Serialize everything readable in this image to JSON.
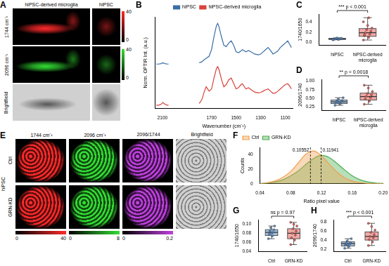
{
  "panels": {
    "A": {
      "label": "A",
      "columns": [
        "hiPSC-derived microglia",
        "hiPSC"
      ],
      "rows": [
        "1744 cm⁻¹",
        "2096 cm⁻¹",
        "Brightfield"
      ],
      "colors": [
        "#ff2a2a",
        "#33dd33",
        "#b0b0b0"
      ],
      "colorbars": [
        {
          "range": [
            0,
            40
          ]
        },
        {
          "range": [
            0,
            40
          ]
        }
      ]
    },
    "E": {
      "label": "E",
      "group": "hiPSC",
      "rows": [
        "Ctrl",
        "GRN-KD"
      ],
      "columns": [
        "1744 cm⁻¹",
        "2096 cm⁻¹",
        "2096/1744",
        "Brightfield"
      ],
      "colors": [
        "#ff2a2a",
        "#33dd33",
        "#c040e0",
        "#b0b0b0"
      ],
      "colorbars": [
        {
          "range": [
            0,
            40
          ]
        },
        {
          "range": [
            0,
            8
          ]
        },
        {
          "range": [
            0,
            0.2
          ]
        }
      ]
    }
  },
  "chart_data": [
    {
      "label": "B",
      "type": "line",
      "x_label": "Wavenumber (cm⁻¹)",
      "y_label": "Norm. OPTIR Int. (a.u.)",
      "x": [
        2150,
        2130,
        2110,
        2096,
        2080,
        2060,
        2050,
        1950,
        1800,
        1780,
        1760,
        1744,
        1720,
        1700,
        1680,
        1660,
        1650,
        1640,
        1620,
        1600,
        1580,
        1560,
        1540,
        1520,
        1500,
        1480,
        1460,
        1450,
        1420,
        1400,
        1380,
        1350,
        1320,
        1300,
        1280,
        1260,
        1240,
        1220,
        1200,
        1180,
        1160,
        1140,
        1120,
        1100,
        1080,
        1060,
        1050
      ],
      "series": [
        {
          "name": "hiPSC",
          "color": "#3a6ea5",
          "values": [
            1.02,
            1.02,
            1.03,
            1.05,
            1.03,
            1.02,
            1.02,
            null,
            1.05,
            1.07,
            1.12,
            1.15,
            1.2,
            1.35,
            1.65,
            1.9,
            1.95,
            1.88,
            1.65,
            1.45,
            1.42,
            1.5,
            1.55,
            1.45,
            1.3,
            1.28,
            1.32,
            1.35,
            1.3,
            1.33,
            1.3,
            1.25,
            1.23,
            1.25,
            1.3,
            1.35,
            1.4,
            1.33,
            1.25,
            1.28,
            1.32,
            1.4,
            1.45,
            1.5,
            1.55,
            1.45,
            1.4
          ]
        },
        {
          "name": "hiPSC-derived microglia",
          "color": "#d9413a",
          "values": [
            0.08,
            0.08,
            0.1,
            0.14,
            0.1,
            0.08,
            0.08,
            null,
            0.12,
            0.2,
            0.38,
            0.5,
            0.4,
            0.45,
            0.7,
            0.92,
            0.96,
            0.9,
            0.68,
            0.5,
            0.55,
            0.66,
            0.7,
            0.58,
            0.45,
            0.48,
            0.55,
            0.57,
            0.45,
            0.48,
            0.44,
            0.38,
            0.36,
            0.37,
            0.4,
            0.43,
            0.45,
            0.4,
            0.35,
            0.36,
            0.4,
            0.45,
            0.5,
            0.55,
            0.57,
            0.5,
            0.45
          ]
        }
      ],
      "xlim": [
        2160,
        1040
      ],
      "xticks": [
        2100,
        1700,
        1500,
        1300,
        1100
      ],
      "ylim": [
        0,
        2.1
      ],
      "yticks": [],
      "tick_labels": "x",
      "legend": "top",
      "grid": false
    },
    {
      "label": "C",
      "type": "box",
      "categories": [
        "hiPSC",
        "hiPSC-derived microglia"
      ],
      "y_label": "1740/1650",
      "colors": [
        "#5b8fc7",
        "#e0605a"
      ],
      "boxes": [
        {
          "whisker_low": 0.055,
          "q1": 0.062,
          "median": 0.07,
          "q3": 0.08,
          "whisker_high": 0.09,
          "points": [
            0.055,
            0.06,
            0.065,
            0.07,
            0.07,
            0.075,
            0.08,
            0.085,
            0.09,
            0.06
          ]
        },
        {
          "whisker_low": 0.05,
          "q1": 0.12,
          "median": 0.19,
          "q3": 0.27,
          "whisker_high": 0.48,
          "points": [
            0.05,
            0.1,
            0.13,
            0.16,
            0.19,
            0.22,
            0.25,
            0.28,
            0.33,
            0.4,
            0.48,
            0.15
          ]
        }
      ],
      "ylim": [
        -0.05,
        0.55
      ],
      "yticks": [
        {
          "value": 0,
          "label": "0.0"
        },
        {
          "value": 0.2,
          "label": "0.2"
        },
        {
          "value": 0.4,
          "label": "0.4"
        }
      ],
      "annotation": "*** p < 0.001",
      "grid": false
    },
    {
      "label": "D",
      "type": "box",
      "categories": [
        "hiPSC",
        "hiPSC-derived microglia"
      ],
      "y_label": "2096/1740",
      "colors": [
        "#5b8fc7",
        "#e0605a"
      ],
      "boxes": [
        {
          "whisker_low": 0.3,
          "q1": 0.35,
          "median": 0.4,
          "q3": 0.45,
          "whisker_high": 0.52,
          "points": [
            0.3,
            0.34,
            0.37,
            0.4,
            0.42,
            0.44,
            0.47,
            0.52,
            0.38
          ]
        },
        {
          "whisker_low": 0.33,
          "q1": 0.45,
          "median": 0.55,
          "q3": 0.65,
          "whisker_high": 0.88,
          "points": [
            0.33,
            0.42,
            0.48,
            0.52,
            0.56,
            0.6,
            0.64,
            0.7,
            0.8,
            0.88
          ]
        }
      ],
      "ylim": [
        0.15,
        1.05
      ],
      "yticks": [
        {
          "value": 0.25,
          "label": "0.25"
        },
        {
          "value": 0.5,
          "label": "0.50"
        },
        {
          "value": 0.75,
          "label": "0.75"
        },
        {
          "value": 1,
          "label": "1.00"
        }
      ],
      "annotation": "** p = 0.0018",
      "grid": false
    },
    {
      "label": "F",
      "type": "area",
      "x_label": "Ratio pixel value",
      "y_label": "Counts",
      "x": [
        0.04,
        0.05,
        0.06,
        0.07,
        0.08,
        0.09,
        0.1,
        0.11,
        0.12,
        0.13,
        0.14,
        0.15,
        0.16,
        0.17,
        0.18,
        0.19,
        0.2
      ],
      "series": [
        {
          "name": "Ctrl",
          "color": "#f0a050",
          "values": [
            0.5,
            1.5,
            4,
            9,
            17,
            29,
            41,
            45,
            38,
            27,
            16,
            8,
            3.5,
            1.5,
            0.5,
            0.2,
            0.1
          ]
        },
        {
          "name": "GRN-KD",
          "color": "#4caf50",
          "values": [
            0.3,
            1,
            2.5,
            5.5,
            11,
            18,
            27,
            35,
            39,
            36,
            28,
            19,
            11,
            5.5,
            2.5,
            1,
            0.4
          ]
        }
      ],
      "xlim": [
        0.04,
        0.2
      ],
      "xticks": [
        0.04,
        0.08,
        0.12,
        0.16,
        {
          "value": 0.2,
          "label": "0.20"
        }
      ],
      "ylim": [
        0,
        50
      ],
      "yticks": [
        0,
        20,
        40
      ],
      "vlines": [
        0.10552,
        0.11941
      ],
      "legend": "top-left",
      "grid": false
    },
    {
      "label": "G",
      "type": "box",
      "categories": [
        "Ctrl",
        "GRN-KD"
      ],
      "y_label": "1740/1650",
      "colors": [
        "#5b8fc7",
        "#e0605a"
      ],
      "boxes": [
        {
          "whisker_low": 0.068,
          "q1": 0.075,
          "median": 0.082,
          "q3": 0.088,
          "whisker_high": 0.096,
          "points": [
            0.068,
            0.074,
            0.078,
            0.082,
            0.085,
            0.088,
            0.092,
            0.096,
            0.08
          ]
        },
        {
          "whisker_low": 0.055,
          "q1": 0.068,
          "median": 0.08,
          "q3": 0.09,
          "whisker_high": 0.104,
          "points": [
            0.055,
            0.065,
            0.07,
            0.076,
            0.08,
            0.085,
            0.09,
            0.096,
            0.1,
            0.104
          ]
        }
      ],
      "ylim": [
        0.04,
        0.11
      ],
      "yticks": [
        {
          "value": 0.04,
          "label": "0.04"
        },
        {
          "value": 0.06,
          "label": "0.06"
        },
        {
          "value": 0.08,
          "label": "0.08"
        },
        {
          "value": 0.1,
          "label": "0.10"
        }
      ],
      "annotation": "ns p = 0.97",
      "grid": false
    },
    {
      "label": "H",
      "type": "box",
      "categories": [
        "Ctrl",
        "GRN-KD"
      ],
      "y_label": "2096/1740",
      "colors": [
        "#5b8fc7",
        "#e0605a"
      ],
      "boxes": [
        {
          "whisker_low": 0.22,
          "q1": 0.27,
          "median": 0.32,
          "q3": 0.36,
          "whisker_high": 0.43,
          "points": [
            0.22,
            0.26,
            0.29,
            0.31,
            0.33,
            0.35,
            0.38,
            0.43,
            0.3
          ]
        },
        {
          "whisker_low": 0.28,
          "q1": 0.4,
          "median": 0.48,
          "q3": 0.58,
          "whisker_high": 0.77,
          "points": [
            0.28,
            0.36,
            0.41,
            0.45,
            0.48,
            0.52,
            0.57,
            0.62,
            0.7,
            0.77
          ]
        }
      ],
      "ylim": [
        0.15,
        0.85
      ],
      "yticks": [
        0.2,
        0.4,
        0.6,
        0.8
      ],
      "annotation": "*** p < 0.001",
      "grid": false
    }
  ]
}
